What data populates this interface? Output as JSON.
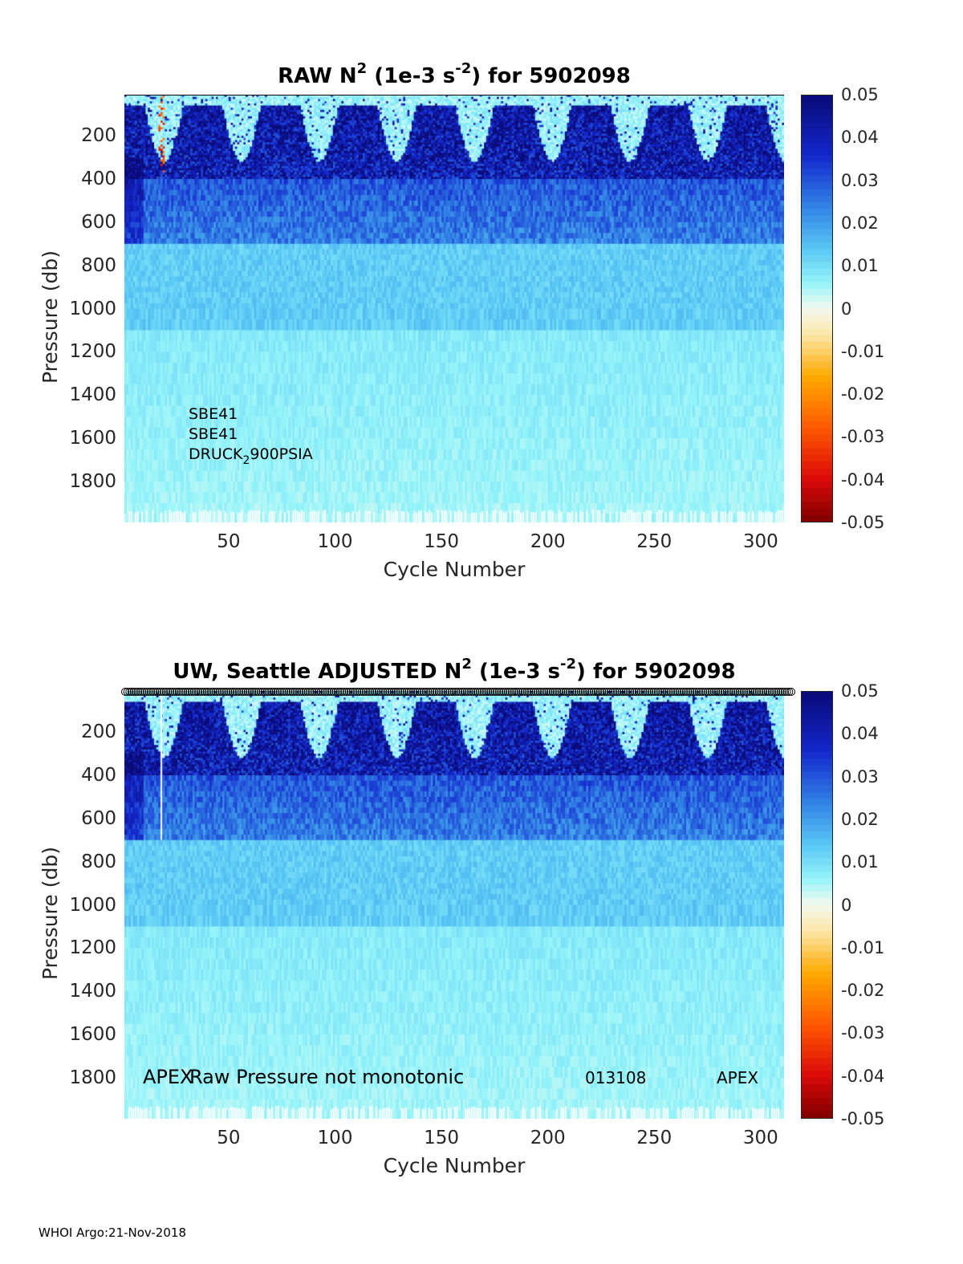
{
  "chart_data": [
    {
      "type": "heatmap",
      "title_prefix": "RAW N",
      "title_exp": "2",
      "title_unit_open": " (1e-3 s",
      "title_unit_exp": "-2",
      "title_suffix": ") for 5902098",
      "xlabel": "Cycle Number",
      "ylabel": "Pressure (db)",
      "xlim": [
        1,
        311
      ],
      "ylim": [
        1990,
        10
      ],
      "x_ticks": [
        50,
        100,
        150,
        200,
        250,
        300
      ],
      "y_ticks": [
        200,
        400,
        600,
        800,
        1000,
        1200,
        1400,
        1600,
        1800
      ],
      "color_limits": [
        -0.05,
        0.05
      ],
      "colorbar_ticks": [
        "0.05",
        "0.04",
        "0.03",
        "0.02",
        "0.01",
        "0",
        "-0.01",
        "-0.02",
        "-0.03",
        "-0.04",
        "-0.05"
      ],
      "annotations": {
        "line1": "SBE41",
        "line2": "SBE41",
        "line3_a": "DRUCK",
        "line3_sub": "2",
        "line3_b": "900PSIA"
      }
    },
    {
      "type": "heatmap",
      "title_prefix": "UW, Seattle  ADJUSTED N",
      "title_exp": "2",
      "title_unit_open": " (1e-3 s",
      "title_unit_exp": "-2",
      "title_suffix": ") for 5902098",
      "xlabel": "Cycle Number",
      "ylabel": "Pressure (db)",
      "xlim": [
        1,
        311
      ],
      "ylim": [
        1990,
        10
      ],
      "x_ticks": [
        50,
        100,
        150,
        200,
        250,
        300
      ],
      "y_ticks": [
        200,
        400,
        600,
        800,
        1000,
        1200,
        1400,
        1600,
        1800
      ],
      "color_limits": [
        -0.05,
        0.05
      ],
      "colorbar_ticks": [
        "0.05",
        "0.04",
        "0.03",
        "0.02",
        "0.01",
        "0",
        "-0.01",
        "-0.02",
        "-0.03",
        "-0.04",
        "-0.05"
      ],
      "annotations": {
        "left": "APEX",
        "message": "Raw Pressure not monotonic",
        "serial": "013108",
        "right": "APEX"
      }
    }
  ],
  "footer": "WHOI Argo:21-Nov-2018"
}
